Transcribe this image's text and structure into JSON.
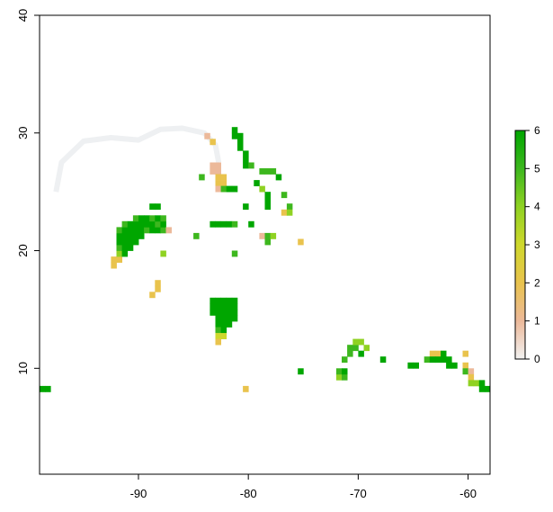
{
  "chart_data": {
    "type": "heatmap",
    "title": "",
    "xlabel": "",
    "ylabel": "",
    "xlim": [
      -99,
      -58
    ],
    "ylim": [
      1,
      40
    ],
    "x_ticks": [
      {
        "value": -90,
        "label": "-90"
      },
      {
        "value": -80,
        "label": "-80"
      },
      {
        "value": -70,
        "label": "-70"
      },
      {
        "value": -60,
        "label": "-60"
      }
    ],
    "y_ticks": [
      {
        "value": 10,
        "label": "10"
      },
      {
        "value": 20,
        "label": "20"
      },
      {
        "value": 30,
        "label": "30"
      },
      {
        "value": 40,
        "label": "40"
      }
    ],
    "grid": false,
    "legend": {
      "placement": "right",
      "type": "colorbar",
      "range": [
        0,
        6
      ],
      "ticks": [
        {
          "value": 0,
          "label": "0"
        },
        {
          "value": 1,
          "label": "1"
        },
        {
          "value": 2,
          "label": "2"
        },
        {
          "value": 3,
          "label": "3"
        },
        {
          "value": 4,
          "label": "4"
        },
        {
          "value": 5,
          "label": "5"
        },
        {
          "value": 6,
          "label": "6"
        }
      ],
      "colors": [
        "#f2f2f2",
        "#ecb99a",
        "#e9c34d",
        "#cfd82c",
        "#8fd222",
        "#3db71e",
        "#00a600"
      ]
    },
    "cell_size": [
      0.5,
      0.5
    ],
    "cells": [
      {
        "x": -99,
        "y": 8,
        "v": 6
      },
      {
        "x": -98.5,
        "y": 8,
        "v": 6
      },
      {
        "x": -92.5,
        "y": 18.5,
        "v": 2
      },
      {
        "x": -92.5,
        "y": 19,
        "v": 2
      },
      {
        "x": -92,
        "y": 19,
        "v": 2
      },
      {
        "x": -92,
        "y": 19.5,
        "v": 4
      },
      {
        "x": -92,
        "y": 20,
        "v": 5
      },
      {
        "x": -92,
        "y": 20.5,
        "v": 6
      },
      {
        "x": -92,
        "y": 21,
        "v": 6
      },
      {
        "x": -92,
        "y": 21.5,
        "v": 5
      },
      {
        "x": -91.5,
        "y": 19.5,
        "v": 6
      },
      {
        "x": -91.5,
        "y": 20,
        "v": 6
      },
      {
        "x": -91.5,
        "y": 20.5,
        "v": 6
      },
      {
        "x": -91.5,
        "y": 21,
        "v": 6
      },
      {
        "x": -91.5,
        "y": 21.5,
        "v": 6
      },
      {
        "x": -91.5,
        "y": 22,
        "v": 5
      },
      {
        "x": -91,
        "y": 20,
        "v": 6
      },
      {
        "x": -91,
        "y": 20.5,
        "v": 6
      },
      {
        "x": -91,
        "y": 21,
        "v": 6
      },
      {
        "x": -91,
        "y": 21.5,
        "v": 6
      },
      {
        "x": -91,
        "y": 22,
        "v": 6
      },
      {
        "x": -90.5,
        "y": 20.5,
        "v": 6
      },
      {
        "x": -90.5,
        "y": 21,
        "v": 6
      },
      {
        "x": -90.5,
        "y": 21.5,
        "v": 6
      },
      {
        "x": -90.5,
        "y": 22,
        "v": 6
      },
      {
        "x": -90.5,
        "y": 22.5,
        "v": 5
      },
      {
        "x": -90,
        "y": 21,
        "v": 6
      },
      {
        "x": -90,
        "y": 21.5,
        "v": 6
      },
      {
        "x": -90,
        "y": 22,
        "v": 6
      },
      {
        "x": -90,
        "y": 22.5,
        "v": 6
      },
      {
        "x": -89.5,
        "y": 21.5,
        "v": 5
      },
      {
        "x": -89.5,
        "y": 22,
        "v": 6
      },
      {
        "x": -89.5,
        "y": 22.5,
        "v": 6
      },
      {
        "x": -89,
        "y": 21.5,
        "v": 6
      },
      {
        "x": -89,
        "y": 22,
        "v": 6
      },
      {
        "x": -89,
        "y": 22.5,
        "v": 5
      },
      {
        "x": -89,
        "y": 23.5,
        "v": 6
      },
      {
        "x": -88.5,
        "y": 21.5,
        "v": 6
      },
      {
        "x": -88.5,
        "y": 22,
        "v": 5
      },
      {
        "x": -88.5,
        "y": 22.5,
        "v": 6
      },
      {
        "x": -88.5,
        "y": 23.5,
        "v": 6
      },
      {
        "x": -88,
        "y": 21.5,
        "v": 5
      },
      {
        "x": -88,
        "y": 22,
        "v": 6
      },
      {
        "x": -88,
        "y": 22.5,
        "v": 5
      },
      {
        "x": -87.5,
        "y": 21.5,
        "v": 1
      },
      {
        "x": -88,
        "y": 19.5,
        "v": 4
      },
      {
        "x": -88.5,
        "y": 16.5,
        "v": 2
      },
      {
        "x": -88.5,
        "y": 17,
        "v": 2
      },
      {
        "x": -89,
        "y": 16,
        "v": 2
      },
      {
        "x": -84,
        "y": 29.5,
        "v": 1
      },
      {
        "x": -83.5,
        "y": 29,
        "v": 2
      },
      {
        "x": -83.5,
        "y": 27,
        "v": 1
      },
      {
        "x": -83.5,
        "y": 26.5,
        "v": 1
      },
      {
        "x": -83,
        "y": 27,
        "v": 1
      },
      {
        "x": -83,
        "y": 26.5,
        "v": 1
      },
      {
        "x": -83,
        "y": 26,
        "v": 2
      },
      {
        "x": -83,
        "y": 25.5,
        "v": 2
      },
      {
        "x": -83,
        "y": 25,
        "v": 1
      },
      {
        "x": -82.5,
        "y": 26,
        "v": 2
      },
      {
        "x": -82.5,
        "y": 25.5,
        "v": 2
      },
      {
        "x": -82.5,
        "y": 25,
        "v": 5
      },
      {
        "x": -82,
        "y": 25,
        "v": 6
      },
      {
        "x": -81.5,
        "y": 25,
        "v": 6
      },
      {
        "x": -84.5,
        "y": 26,
        "v": 5
      },
      {
        "x": -81.5,
        "y": 30,
        "v": 6
      },
      {
        "x": -81.5,
        "y": 29.5,
        "v": 6
      },
      {
        "x": -81,
        "y": 29.5,
        "v": 6
      },
      {
        "x": -81,
        "y": 29,
        "v": 6
      },
      {
        "x": -81,
        "y": 28.5,
        "v": 6
      },
      {
        "x": -80.5,
        "y": 28,
        "v": 6
      },
      {
        "x": -80.5,
        "y": 27.5,
        "v": 6
      },
      {
        "x": -80.5,
        "y": 27,
        "v": 6
      },
      {
        "x": -80,
        "y": 27,
        "v": 5
      },
      {
        "x": -79,
        "y": 26.5,
        "v": 5
      },
      {
        "x": -78.5,
        "y": 26.5,
        "v": 5
      },
      {
        "x": -78,
        "y": 26.5,
        "v": 5
      },
      {
        "x": -77.5,
        "y": 26,
        "v": 6
      },
      {
        "x": -79.5,
        "y": 25.5,
        "v": 6
      },
      {
        "x": -79,
        "y": 25,
        "v": 4
      },
      {
        "x": -78.5,
        "y": 24.5,
        "v": 6
      },
      {
        "x": -78.5,
        "y": 24,
        "v": 6
      },
      {
        "x": -78.5,
        "y": 23.5,
        "v": 6
      },
      {
        "x": -77,
        "y": 24.5,
        "v": 5
      },
      {
        "x": -77,
        "y": 23,
        "v": 2
      },
      {
        "x": -76.5,
        "y": 23.5,
        "v": 5
      },
      {
        "x": -76.5,
        "y": 23,
        "v": 4
      },
      {
        "x": -80.5,
        "y": 23.5,
        "v": 6
      },
      {
        "x": -83.5,
        "y": 22,
        "v": 6
      },
      {
        "x": -83,
        "y": 22,
        "v": 6
      },
      {
        "x": -82.5,
        "y": 22,
        "v": 6
      },
      {
        "x": -82,
        "y": 22,
        "v": 6
      },
      {
        "x": -81.5,
        "y": 22,
        "v": 5
      },
      {
        "x": -80,
        "y": 22,
        "v": 6
      },
      {
        "x": -79,
        "y": 21,
        "v": 1
      },
      {
        "x": -78.5,
        "y": 21,
        "v": 5
      },
      {
        "x": -78.5,
        "y": 20.5,
        "v": 5
      },
      {
        "x": -78,
        "y": 21,
        "v": 4
      },
      {
        "x": -75.5,
        "y": 20.5,
        "v": 2
      },
      {
        "x": -85,
        "y": 21,
        "v": 5
      },
      {
        "x": -81.5,
        "y": 19.5,
        "v": 5
      },
      {
        "x": -83.5,
        "y": 15.5,
        "v": 6
      },
      {
        "x": -83,
        "y": 15.5,
        "v": 6
      },
      {
        "x": -82.5,
        "y": 15.5,
        "v": 6
      },
      {
        "x": -82,
        "y": 15.5,
        "v": 6
      },
      {
        "x": -81.5,
        "y": 15.5,
        "v": 6
      },
      {
        "x": -83.5,
        "y": 15,
        "v": 6
      },
      {
        "x": -83,
        "y": 15,
        "v": 6
      },
      {
        "x": -82.5,
        "y": 15,
        "v": 6
      },
      {
        "x": -82,
        "y": 15,
        "v": 6
      },
      {
        "x": -81.5,
        "y": 15,
        "v": 6
      },
      {
        "x": -83.5,
        "y": 14.5,
        "v": 6
      },
      {
        "x": -83,
        "y": 14.5,
        "v": 6
      },
      {
        "x": -82.5,
        "y": 14.5,
        "v": 6
      },
      {
        "x": -82,
        "y": 14.5,
        "v": 6
      },
      {
        "x": -81.5,
        "y": 14.5,
        "v": 6
      },
      {
        "x": -83,
        "y": 14,
        "v": 6
      },
      {
        "x": -82.5,
        "y": 14,
        "v": 6
      },
      {
        "x": -82,
        "y": 14,
        "v": 6
      },
      {
        "x": -81.5,
        "y": 14,
        "v": 6
      },
      {
        "x": -83,
        "y": 13.5,
        "v": 6
      },
      {
        "x": -82.5,
        "y": 13.5,
        "v": 6
      },
      {
        "x": -82,
        "y": 13.5,
        "v": 6
      },
      {
        "x": -83,
        "y": 13,
        "v": 5
      },
      {
        "x": -82.5,
        "y": 13,
        "v": 6
      },
      {
        "x": -83,
        "y": 12.5,
        "v": 3
      },
      {
        "x": -82.5,
        "y": 12.5,
        "v": 3
      },
      {
        "x": -83,
        "y": 12,
        "v": 2
      },
      {
        "x": -80.5,
        "y": 8,
        "v": 2
      },
      {
        "x": -75.5,
        "y": 9.5,
        "v": 6
      },
      {
        "x": -72,
        "y": 9,
        "v": 4
      },
      {
        "x": -71.5,
        "y": 9,
        "v": 5
      },
      {
        "x": -72,
        "y": 9.5,
        "v": 5
      },
      {
        "x": -71.5,
        "y": 9.5,
        "v": 6
      },
      {
        "x": -71.5,
        "y": 10.5,
        "v": 5
      },
      {
        "x": -71,
        "y": 11,
        "v": 5
      },
      {
        "x": -71,
        "y": 11.5,
        "v": 5
      },
      {
        "x": -70.5,
        "y": 11.5,
        "v": 5
      },
      {
        "x": -70.5,
        "y": 12,
        "v": 4
      },
      {
        "x": -70,
        "y": 12,
        "v": 4
      },
      {
        "x": -69.5,
        "y": 11.5,
        "v": 4
      },
      {
        "x": -70,
        "y": 11,
        "v": 6
      },
      {
        "x": -68,
        "y": 10.5,
        "v": 6
      },
      {
        "x": -65.5,
        "y": 10,
        "v": 6
      },
      {
        "x": -65,
        "y": 10,
        "v": 6
      },
      {
        "x": -64,
        "y": 10.5,
        "v": 5
      },
      {
        "x": -63.5,
        "y": 11,
        "v": 2
      },
      {
        "x": -63,
        "y": 11,
        "v": 2
      },
      {
        "x": -63.5,
        "y": 10.5,
        "v": 6
      },
      {
        "x": -63,
        "y": 10.5,
        "v": 6
      },
      {
        "x": -62.5,
        "y": 10.5,
        "v": 6
      },
      {
        "x": -62.5,
        "y": 11,
        "v": 6
      },
      {
        "x": -62,
        "y": 10.5,
        "v": 6
      },
      {
        "x": -62,
        "y": 10,
        "v": 6
      },
      {
        "x": -61.5,
        "y": 10,
        "v": 6
      },
      {
        "x": -60.5,
        "y": 11,
        "v": 2
      },
      {
        "x": -60.5,
        "y": 10,
        "v": 2
      },
      {
        "x": -60.5,
        "y": 9.5,
        "v": 5
      },
      {
        "x": -60,
        "y": 9.5,
        "v": 1
      },
      {
        "x": -60,
        "y": 9,
        "v": 2
      },
      {
        "x": -60,
        "y": 8.5,
        "v": 4
      },
      {
        "x": -59.5,
        "y": 8.5,
        "v": 4
      },
      {
        "x": -59,
        "y": 8.5,
        "v": 6
      },
      {
        "x": -59,
        "y": 8,
        "v": 6
      },
      {
        "x": -58.5,
        "y": 8,
        "v": 6
      }
    ],
    "background_outline": [
      [
        -97.5,
        25
      ],
      [
        -97,
        27.5
      ],
      [
        -95,
        29.3
      ],
      [
        -92.5,
        29.6
      ],
      [
        -90,
        29.4
      ],
      [
        -88,
        30.3
      ],
      [
        -86,
        30.4
      ],
      [
        -84,
        30
      ],
      [
        -83,
        29
      ],
      [
        -82.7,
        27.5
      ]
    ]
  }
}
